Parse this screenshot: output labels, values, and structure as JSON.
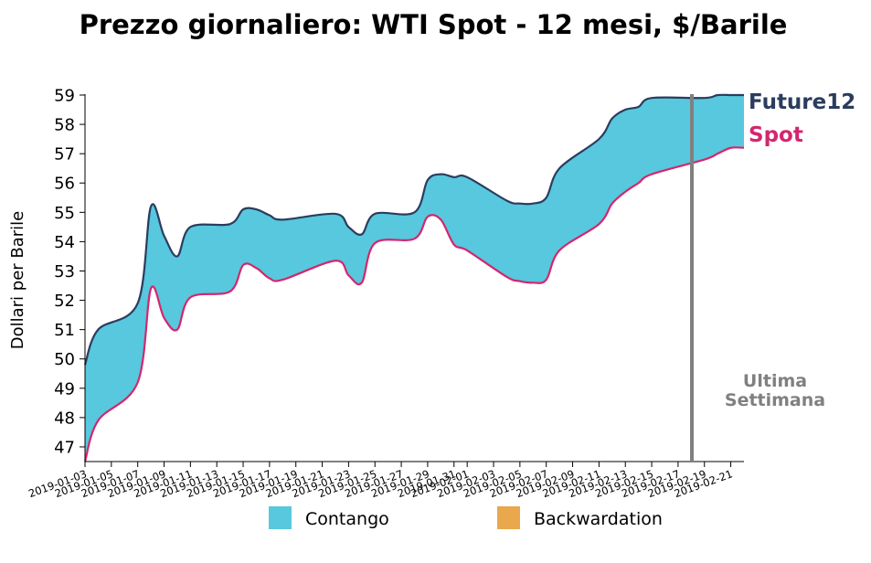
{
  "chart_data": {
    "type": "area",
    "title": "Prezzo giornaliero: WTI Spot - 12 mesi, $/Barile",
    "xlabel": "",
    "ylabel": "Dollari per Barile",
    "ylim": [
      46.5,
      59
    ],
    "yticks": [
      47,
      48,
      49,
      50,
      51,
      52,
      53,
      54,
      55,
      56,
      57,
      58,
      59
    ],
    "x": [
      "2019-01-03",
      "2019-01-04",
      "2019-01-07",
      "2019-01-08",
      "2019-01-09",
      "2019-01-10",
      "2019-01-11",
      "2019-01-14",
      "2019-01-15",
      "2019-01-16",
      "2019-01-17",
      "2019-01-18",
      "2019-01-22",
      "2019-01-23",
      "2019-01-24",
      "2019-01-25",
      "2019-01-28",
      "2019-01-29",
      "2019-01-30",
      "2019-01-31",
      "2019-02-01",
      "2019-02-04",
      "2019-02-05",
      "2019-02-06",
      "2019-02-07",
      "2019-02-08",
      "2019-02-11",
      "2019-02-12",
      "2019-02-13",
      "2019-02-14",
      "2019-02-15",
      "2019-02-19",
      "2019-02-20",
      "2019-02-21",
      "2019-02-22"
    ],
    "xticks": [
      "2019-01-03",
      "2019-01-05",
      "2019-01-07",
      "2019-01-09",
      "2019-01-11",
      "2019-01-13",
      "2019-01-15",
      "2019-01-17",
      "2019-01-19",
      "2019-01-21",
      "2019-01-23",
      "2019-01-25",
      "2019-01-27",
      "2019-01-29",
      "2019-01-31",
      "2019-02-01",
      "2019-02-03",
      "2019-02-05",
      "2019-02-07",
      "2019-02-09",
      "2019-02-11",
      "2019-02-13",
      "2019-02-15",
      "2019-02-17",
      "2019-02-19",
      "2019-02-21"
    ],
    "series": [
      {
        "name": "Future12",
        "color": "#2b3d5e",
        "values": [
          49.8,
          51.0,
          51.9,
          55.2,
          54.2,
          53.5,
          54.5,
          54.6,
          55.1,
          55.1,
          54.9,
          54.75,
          54.95,
          54.5,
          54.25,
          54.95,
          55.0,
          56.1,
          56.3,
          56.2,
          56.2,
          55.4,
          55.3,
          55.3,
          55.5,
          56.5,
          57.5,
          58.2,
          58.5,
          58.6,
          58.9,
          58.9,
          59.0,
          59.0,
          59.0
        ]
      },
      {
        "name": "Spot",
        "color": "#d4266e",
        "values": [
          46.5,
          47.9,
          49.2,
          52.4,
          51.4,
          51.0,
          52.1,
          52.3,
          53.2,
          53.1,
          52.75,
          52.7,
          53.35,
          52.85,
          52.6,
          53.95,
          54.1,
          54.85,
          54.75,
          53.9,
          53.7,
          52.8,
          52.65,
          52.6,
          52.7,
          53.7,
          54.6,
          55.3,
          55.7,
          56.0,
          56.3,
          56.8,
          57.0,
          57.2,
          57.2
        ]
      }
    ],
    "fill_colors": {
      "contango": "#57c8dd",
      "backwardation": "#e8a84b"
    },
    "marker": {
      "label": "Ultima Settimana",
      "label_lines": [
        "Ultima",
        "Settimana"
      ],
      "color": "#808080",
      "date": "2019-02-15"
    },
    "legend": {
      "placement": "bottom",
      "items": [
        {
          "label": "Contango",
          "color": "#57c8dd"
        },
        {
          "label": "Backwardation",
          "color": "#e8a84b"
        }
      ]
    },
    "series_labels": [
      {
        "text": "Future12",
        "color": "#2b3d5e"
      },
      {
        "text": "Spot",
        "color": "#d4266e"
      }
    ],
    "grid": false
  }
}
